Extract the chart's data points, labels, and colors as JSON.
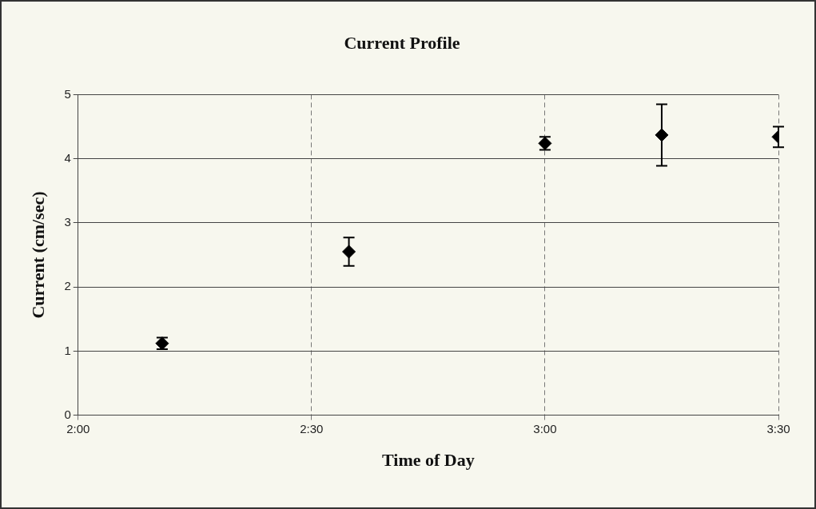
{
  "chart_data": {
    "type": "scatter",
    "title": "Current Profile",
    "xlabel": "Time of Day",
    "ylabel": "Current (cm/sec)",
    "x": [
      2.18,
      2.58,
      3.0,
      3.25,
      3.5
    ],
    "series": [
      {
        "color": "#000000",
        "values": [
          1.12,
          2.55,
          4.24,
          4.37,
          4.34
        ],
        "errors": [
          0.09,
          0.22,
          0.1,
          0.48,
          0.16
        ]
      }
    ],
    "xlim": [
      2,
      3.5
    ],
    "xticks": [
      {
        "value": 2,
        "label": "2:00"
      },
      {
        "value": 2.5,
        "label": "2:30"
      },
      {
        "value": 3,
        "label": "3:00"
      },
      {
        "value": 3.5,
        "label": "3:30"
      }
    ],
    "ylim": [
      0,
      5
    ],
    "yticks": [
      0,
      1,
      2,
      3,
      4,
      5
    ],
    "grid": true,
    "marker": "diamond",
    "legend": false
  }
}
